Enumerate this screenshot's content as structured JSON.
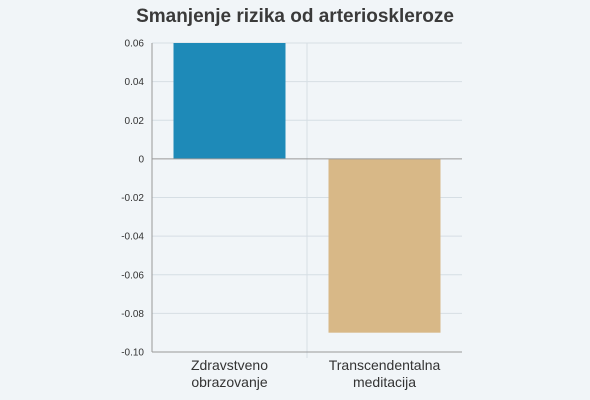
{
  "chart_data": {
    "type": "bar",
    "title": "Smanjenje rizika od arterioskleroze",
    "xlabel": "",
    "ylabel": "",
    "categories": [
      [
        "Zdravstveno",
        "obrazovanje"
      ],
      [
        "Transcendentalna",
        "meditacija"
      ]
    ],
    "values": [
      0.06,
      -0.09
    ],
    "ylim": [
      -0.1,
      0.06
    ],
    "yticks": [
      "0.06",
      "0.04",
      "0.02",
      "0",
      "-0.02",
      "-0.04",
      "-0.06",
      "-0.08",
      "-0.10"
    ],
    "ytick_values": [
      0.06,
      0.04,
      0.02,
      0,
      -0.02,
      -0.04,
      -0.06,
      -0.08,
      -0.1
    ],
    "grid": true,
    "colors": [
      "#1e8ab8",
      "#d8b887"
    ],
    "grid_color": "#d6dee4",
    "axis_color": "#999999"
  }
}
